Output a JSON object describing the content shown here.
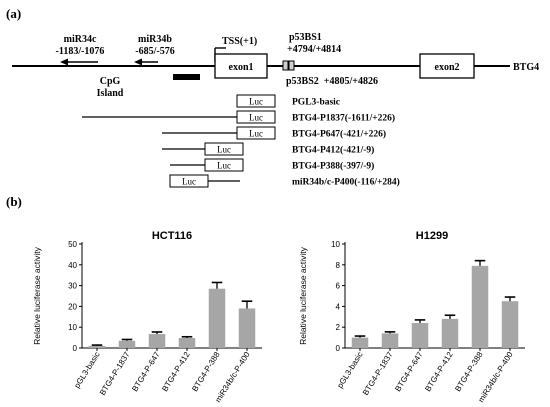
{
  "panel_a": {
    "label": "(a)",
    "mirnas": [
      {
        "name": "miR34c",
        "range": "-1183/-1076"
      },
      {
        "name": "miR34b",
        "range": "-685/-576"
      }
    ],
    "tss": "TSS(+1)",
    "cpg_line1": "CpG",
    "cpg_line2": "Island",
    "exon1": "exon1",
    "exon2": "exon2",
    "gene": "BTG4",
    "p53bs1_name": "p53BS1",
    "p53bs1_range": "+4794/+4814",
    "p53bs2": "p53BS2  +4805/+4826",
    "luc": "Luc",
    "constructs": [
      "PGL3-basic",
      "BTG4-P1837(-1611/+226)",
      "BTG4-P647(-421/+226)",
      "BTG4-P412(-421/-9)",
      "BTG4-P388(-397/-9)",
      "miR34b/c-P400(-116/+284)"
    ]
  },
  "panel_b": {
    "label": "(b)"
  },
  "chart_data": [
    {
      "type": "bar",
      "title": "HCT116",
      "ylabel": "Relative luciferase activity",
      "xlabel": "",
      "categories": [
        "pGL3-basic",
        "BTG4-P-1837",
        "BTG4-P-647",
        "BTG4-P-412",
        "BTG4-P-388",
        "miR34b/c-P-400"
      ],
      "values": [
        1.0,
        3.5,
        6.7,
        4.8,
        28.5,
        19.0
      ],
      "errors": [
        0.4,
        0.6,
        1.0,
        0.6,
        3.0,
        3.5
      ],
      "ylim": [
        0,
        50
      ],
      "yticks": [
        0,
        10,
        20,
        30,
        40,
        50
      ],
      "bar_color": "#a6a6a6"
    },
    {
      "type": "bar",
      "title": "H1299",
      "ylabel": "Relative luciferase activity",
      "xlabel": "",
      "categories": [
        "pGL3-basic",
        "BTG4-P-1837",
        "BTG4-P-647",
        "BTG4-P-412",
        "BTG4-P-388",
        "miR34b/c-P-400"
      ],
      "values": [
        1.0,
        1.4,
        2.4,
        2.8,
        7.9,
        4.5
      ],
      "errors": [
        0.15,
        0.15,
        0.3,
        0.35,
        0.5,
        0.4
      ],
      "ylim": [
        0,
        10
      ],
      "yticks": [
        0,
        2,
        4,
        6,
        8,
        10
      ],
      "bar_color": "#a6a6a6"
    }
  ]
}
